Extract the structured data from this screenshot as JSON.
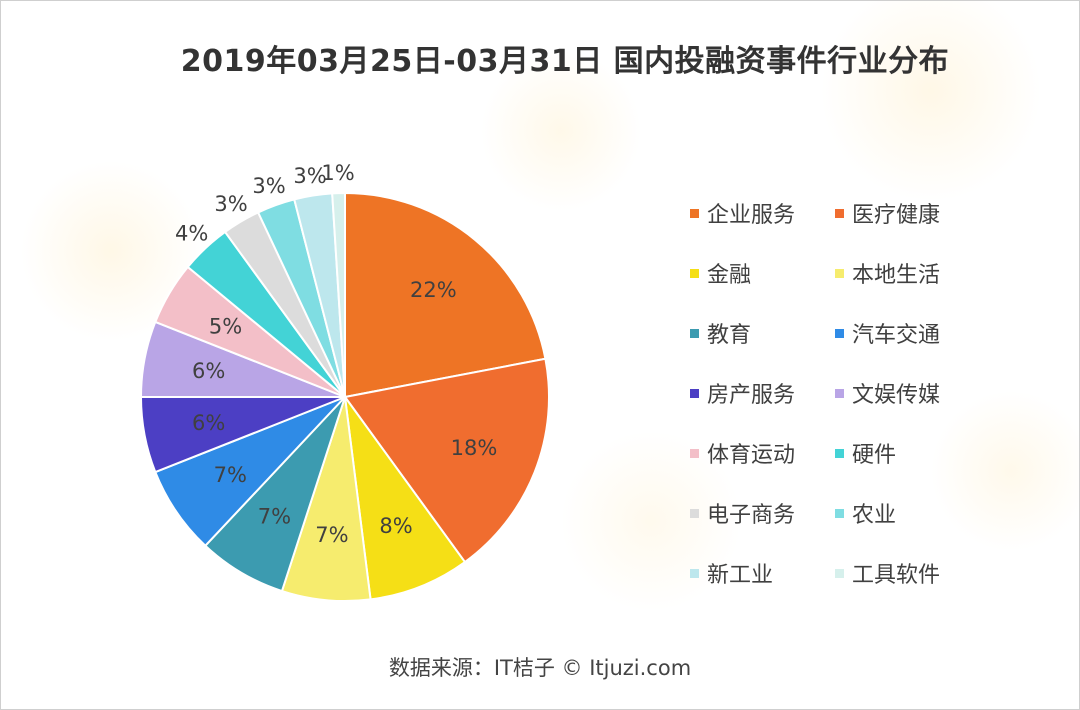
{
  "source_text": "数据来源：IT桔子 © Itjuzi.com",
  "chart_data": {
    "type": "pie",
    "title": "2019年03月25日-03月31日 国内投融资事件行业分布",
    "legend_position": "right",
    "slices": [
      {
        "label": "企业服务",
        "value": 22,
        "display": "22%",
        "color": "#ee7425"
      },
      {
        "label": "医疗健康",
        "value": 18,
        "display": "18%",
        "color": "#f06d2f"
      },
      {
        "label": "金融",
        "value": 8,
        "display": "8%",
        "color": "#f5df16"
      },
      {
        "label": "本地生活",
        "value": 7,
        "display": "7%",
        "color": "#f6ec6e"
      },
      {
        "label": "教育",
        "value": 7,
        "display": "7%",
        "color": "#3c9bb0"
      },
      {
        "label": "汽车交通",
        "value": 7,
        "display": "7%",
        "color": "#2f8be6"
      },
      {
        "label": "房产服务",
        "value": 6,
        "display": "6%",
        "color": "#4c3fc4"
      },
      {
        "label": "文娱传媒",
        "value": 6,
        "display": "6%",
        "color": "#b9a5e6"
      },
      {
        "label": "体育运动",
        "value": 5,
        "display": "5%",
        "color": "#f3bfc8"
      },
      {
        "label": "硬件",
        "value": 4,
        "display": "4%",
        "color": "#43d3d6"
      },
      {
        "label": "电子商务",
        "value": 3,
        "display": "3%",
        "color": "#dcdcdc"
      },
      {
        "label": "农业",
        "value": 3,
        "display": "3%",
        "color": "#7fdde2"
      },
      {
        "label": "新工业",
        "value": 3,
        "display": "3%",
        "color": "#bde7ed"
      },
      {
        "label": "工具软件",
        "value": 1,
        "display": "1%",
        "color": "#d6f0ec"
      }
    ]
  }
}
